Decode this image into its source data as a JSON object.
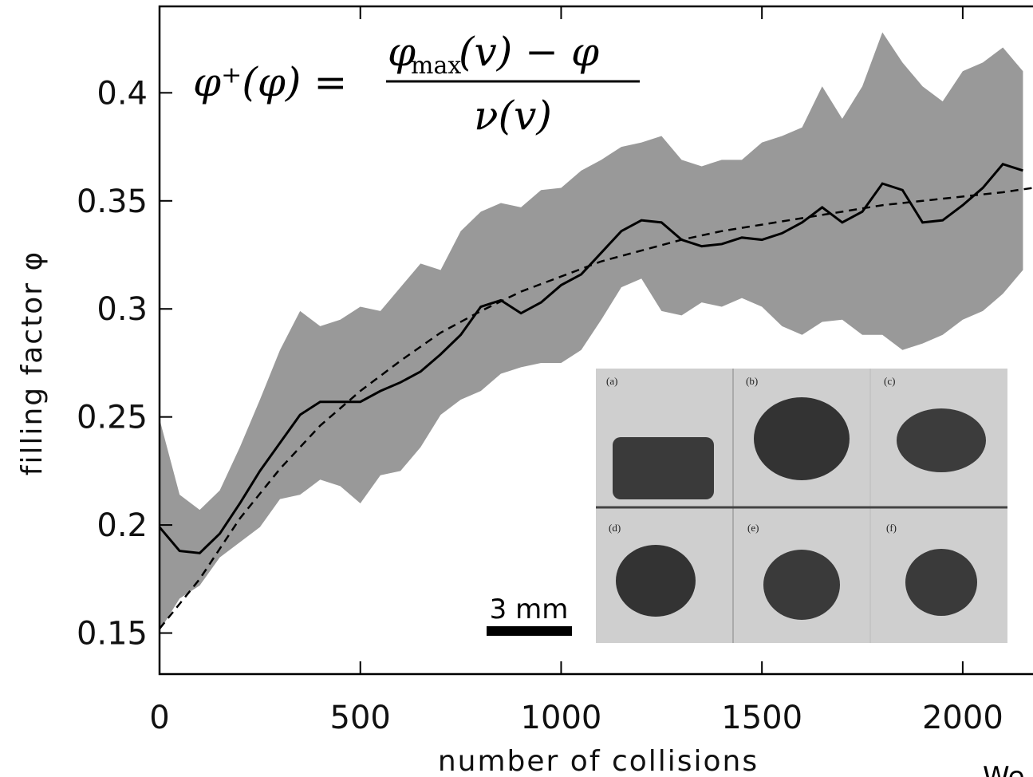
{
  "chart_data": {
    "type": "line",
    "xlabel": "number of collisions",
    "ylabel": "filling factor φ",
    "formula": {
      "lhs": "φ⁺(φ) =",
      "num_a": "φ",
      "num_sub": "max",
      "num_b": "(v) − φ",
      "den": "ν(v)"
    },
    "inset": {
      "panel_labels": [
        "(a)",
        "(b)",
        "(c)",
        "(d)",
        "(e)",
        "(f)"
      ],
      "scale_label": "3 mm"
    },
    "corner_text": "We",
    "xlim": [
      0,
      2175
    ],
    "ylim": [
      0.131,
      0.44
    ],
    "xticks": [
      0,
      500,
      1000,
      1500,
      2000
    ],
    "yticks": [
      0.15,
      0.2,
      0.25,
      0.3,
      0.35,
      0.4
    ],
    "yticks_labels_note": null,
    "x": [
      0,
      50,
      100,
      150,
      200,
      250,
      300,
      350,
      400,
      450,
      500,
      550,
      600,
      650,
      700,
      750,
      800,
      850,
      900,
      950,
      1000,
      1050,
      1100,
      1150,
      1200,
      1250,
      1300,
      1350,
      1400,
      1450,
      1500,
      1550,
      1600,
      1650,
      1700,
      1750,
      1800,
      1850,
      1900,
      1950,
      2000,
      2050,
      2100,
      2150
    ],
    "band": {
      "color": "#999999",
      "upper": [
        0.249,
        0.214,
        0.207,
        0.216,
        0.236,
        0.258,
        0.281,
        0.299,
        0.292,
        0.295,
        0.301,
        0.299,
        0.31,
        0.321,
        0.318,
        0.336,
        0.345,
        0.349,
        0.347,
        0.355,
        0.356,
        0.364,
        0.369,
        0.375,
        0.377,
        0.38,
        0.369,
        0.366,
        0.369,
        0.369,
        0.377,
        0.38,
        0.384,
        0.403,
        0.388,
        0.403,
        0.428,
        0.414,
        0.403,
        0.396,
        0.41,
        0.414,
        0.421,
        0.41
      ],
      "lower": [
        0.151,
        0.166,
        0.172,
        0.185,
        0.192,
        0.199,
        0.212,
        0.214,
        0.221,
        0.218,
        0.21,
        0.223,
        0.225,
        0.236,
        0.251,
        0.258,
        0.262,
        0.27,
        0.273,
        0.275,
        0.275,
        0.281,
        0.295,
        0.31,
        0.314,
        0.299,
        0.297,
        0.303,
        0.301,
        0.305,
        0.301,
        0.292,
        0.288,
        0.294,
        0.295,
        0.288,
        0.288,
        0.281,
        0.284,
        0.288,
        0.295,
        0.299,
        0.307,
        0.318
      ]
    },
    "series": [
      {
        "color": "#000000",
        "values": [
          0.199,
          0.188,
          0.187,
          0.196,
          0.21,
          0.225,
          0.238,
          0.251,
          0.257,
          0.257,
          0.257,
          0.262,
          0.266,
          0.271,
          0.279,
          0.288,
          0.301,
          0.304,
          0.298,
          0.303,
          0.311,
          0.316,
          0.326,
          0.336,
          0.341,
          0.34,
          0.332,
          0.329,
          0.33,
          0.333,
          0.332,
          0.335,
          0.34,
          0.347,
          0.34,
          0.345,
          0.358,
          0.355,
          0.34,
          0.341,
          0.348,
          0.356,
          0.367,
          0.364
        ]
      }
    ],
    "fit": {
      "color": "#000000",
      "x": [
        0,
        100,
        200,
        300,
        400,
        500,
        600,
        700,
        800,
        900,
        1000,
        1100,
        1200,
        1300,
        1400,
        1500,
        1600,
        1700,
        1800,
        1900,
        2000,
        2100,
        2175
      ],
      "values": [
        0.152,
        0.175,
        0.203,
        0.226,
        0.246,
        0.262,
        0.276,
        0.289,
        0.299,
        0.308,
        0.315,
        0.322,
        0.327,
        0.332,
        0.336,
        0.339,
        0.342,
        0.345,
        0.348,
        0.35,
        0.352,
        0.354,
        0.356
      ]
    }
  }
}
